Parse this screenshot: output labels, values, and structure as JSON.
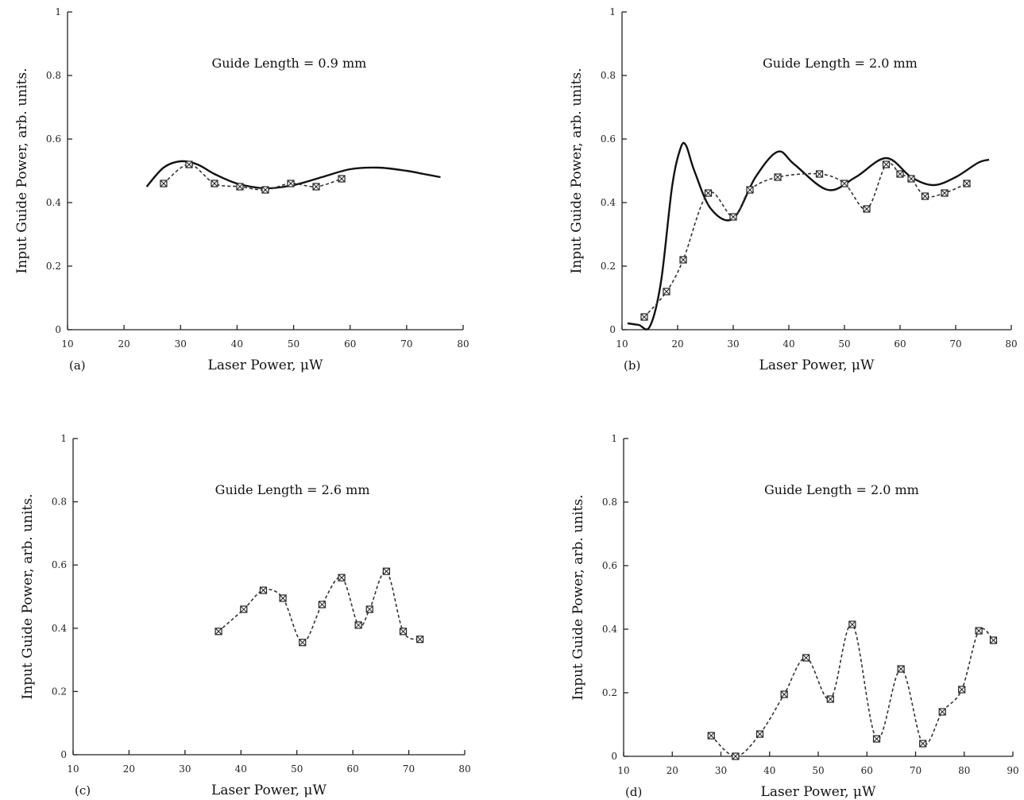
{
  "chart_data": [
    {
      "type": "line",
      "panel_label": "(a)",
      "title": "Guide Length = 0.9 mm",
      "xlabel": "Laser Power, μW",
      "ylabel": "Input Guide Power, arb. units.",
      "xlim": [
        10,
        80
      ],
      "ylim": [
        0,
        1
      ],
      "xticks": [
        10,
        20,
        30,
        40,
        50,
        60,
        70,
        80
      ],
      "yticks": [
        0,
        0.2,
        0.4,
        0.6,
        0.8,
        1
      ],
      "ytick_labels": [
        "0",
        "0.2",
        "0.4",
        "0.6",
        "0.8",
        "1"
      ],
      "grid": false,
      "series": [
        {
          "style": "solid",
          "x": [
            24,
            27,
            30,
            33,
            36,
            40,
            45,
            50,
            55,
            60,
            65,
            70,
            73,
            76
          ],
          "y": [
            0.45,
            0.51,
            0.53,
            0.52,
            0.49,
            0.46,
            0.445,
            0.455,
            0.48,
            0.505,
            0.51,
            0.5,
            0.49,
            0.48
          ]
        },
        {
          "style": "dashed-markers",
          "x": [
            27,
            31.5,
            36,
            40.5,
            45,
            49.5,
            54,
            58.5
          ],
          "y": [
            0.46,
            0.52,
            0.46,
            0.45,
            0.44,
            0.46,
            0.45,
            0.475
          ]
        }
      ]
    },
    {
      "type": "line",
      "panel_label": "(b)",
      "title": "Guide Length = 2.0 mm",
      "xlabel": "Laser Power, μW",
      "ylabel": "Input Guide Power, arb. units.",
      "xlim": [
        10,
        80
      ],
      "ylim": [
        0,
        1
      ],
      "xticks": [
        10,
        20,
        30,
        40,
        50,
        60,
        70,
        80
      ],
      "yticks": [
        0,
        0.2,
        0.4,
        0.6,
        0.8,
        1
      ],
      "ytick_labels": [
        "0",
        "0.2",
        "0.4",
        "0.6",
        "0.8",
        "1"
      ],
      "grid": false,
      "series": [
        {
          "style": "solid",
          "x": [
            11,
            13,
            15,
            17,
            19,
            20.5,
            21.5,
            23,
            26,
            30,
            34,
            38,
            41,
            47,
            52,
            57.5,
            62,
            66,
            70,
            74,
            76
          ],
          "y": [
            0.02,
            0.015,
            0.01,
            0.15,
            0.45,
            0.57,
            0.58,
            0.5,
            0.38,
            0.35,
            0.48,
            0.56,
            0.52,
            0.44,
            0.48,
            0.54,
            0.48,
            0.455,
            0.48,
            0.525,
            0.535
          ]
        },
        {
          "style": "dashed-markers",
          "x": [
            14,
            18,
            21,
            25.5,
            30,
            33,
            38,
            45.5,
            50,
            54,
            57.5,
            60,
            62,
            64.5,
            68,
            72
          ],
          "y": [
            0.04,
            0.12,
            0.22,
            0.43,
            0.355,
            0.44,
            0.48,
            0.49,
            0.46,
            0.38,
            0.52,
            0.49,
            0.475,
            0.42,
            0.43,
            0.46
          ]
        }
      ]
    },
    {
      "type": "line",
      "panel_label": "(c)",
      "title": "Guide Length = 2.6 mm",
      "xlabel": "Laser Power, μW",
      "ylabel": "Input Guide Power, arb. units.",
      "xlim": [
        10,
        80
      ],
      "ylim": [
        0,
        1
      ],
      "xticks": [
        10,
        20,
        30,
        40,
        50,
        60,
        70,
        80
      ],
      "yticks": [
        0,
        0.2,
        0.4,
        0.6,
        0.8,
        1
      ],
      "ytick_labels": [
        "0",
        "0.2",
        "0.4",
        "0.6",
        "0.8",
        "1"
      ],
      "grid": false,
      "series": [
        {
          "style": "dashed-markers",
          "x": [
            36,
            40.5,
            44,
            47.5,
            51,
            54.5,
            58,
            61,
            63,
            66,
            69,
            72
          ],
          "y": [
            0.39,
            0.46,
            0.52,
            0.495,
            0.355,
            0.475,
            0.56,
            0.41,
            0.46,
            0.58,
            0.39,
            0.365
          ]
        }
      ]
    },
    {
      "type": "line",
      "panel_label": "(d)",
      "title": "Guide Length = 2.0 mm",
      "xlabel": "Laser Power, μW",
      "ylabel": "Input Guide Power, arb. units.",
      "xlim": [
        10,
        90
      ],
      "ylim": [
        0,
        1
      ],
      "xticks": [
        10,
        20,
        30,
        40,
        50,
        60,
        70,
        80,
        90
      ],
      "yticks": [
        0,
        0.2,
        0.4,
        0.6,
        0.8,
        1
      ],
      "ytick_labels": [
        "0",
        "0.2",
        "0.4",
        "0.6",
        "0.8",
        "1"
      ],
      "grid": false,
      "series": [
        {
          "style": "dashed-markers",
          "x": [
            28,
            33,
            38,
            43,
            47.5,
            52.5,
            57,
            62,
            67,
            71.5,
            75.5,
            79.5,
            83,
            86
          ],
          "y": [
            0.065,
            0.0,
            0.07,
            0.195,
            0.31,
            0.18,
            0.415,
            0.055,
            0.275,
            0.04,
            0.14,
            0.21,
            0.395,
            0.365
          ]
        }
      ]
    }
  ]
}
